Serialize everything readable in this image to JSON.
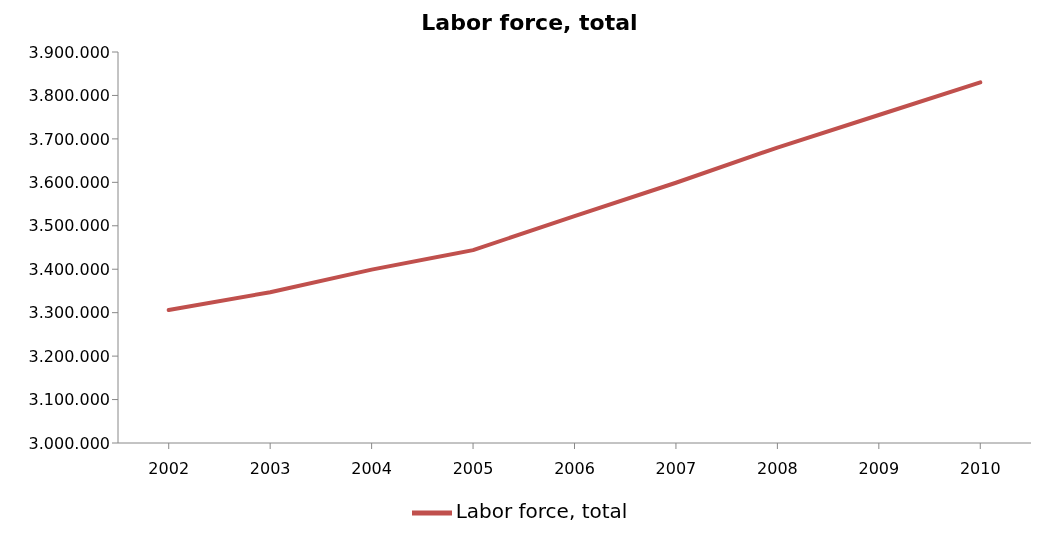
{
  "chart_data": {
    "type": "line",
    "title": "Labor force, total",
    "categories": [
      "2002",
      "2003",
      "2004",
      "2005",
      "2006",
      "2007",
      "2008",
      "2009",
      "2010"
    ],
    "series": [
      {
        "name": "Labor force, total",
        "color": "#c0504d",
        "values": [
          3306000,
          3347000,
          3399000,
          3444000,
          3522000,
          3599000,
          3680000,
          3755000,
          3830000
        ]
      }
    ],
    "ylim": [
      3000000,
      3900000
    ],
    "yticks": [
      {
        "value": 3000000,
        "label": "3.000.000"
      },
      {
        "value": 3100000,
        "label": "3.100.000"
      },
      {
        "value": 3200000,
        "label": "3.200.000"
      },
      {
        "value": 3300000,
        "label": "3.300.000"
      },
      {
        "value": 3400000,
        "label": "3.400.000"
      },
      {
        "value": 3500000,
        "label": "3.500.000"
      },
      {
        "value": 3600000,
        "label": "3.600.000"
      },
      {
        "value": 3700000,
        "label": "3.700.000"
      },
      {
        "value": 3800000,
        "label": "3.800.000"
      },
      {
        "value": 3900000,
        "label": "3.900.000"
      }
    ],
    "grid": false,
    "legend": "bottom",
    "marker": "none",
    "line_style": "solid"
  }
}
